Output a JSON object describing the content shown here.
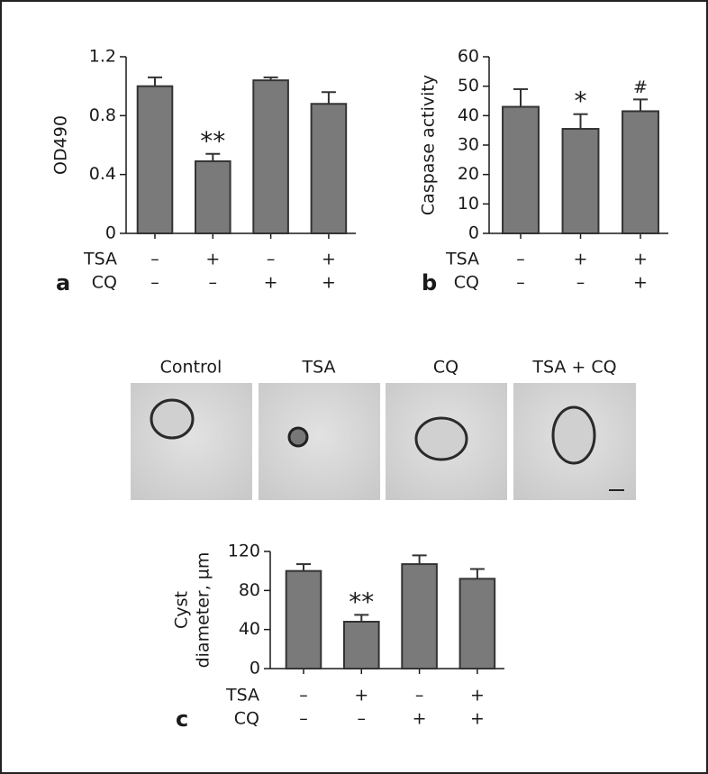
{
  "chart_data": [
    {
      "type": "bar",
      "panel": "a",
      "ylabel": "OD490",
      "color": "#7a7a7a",
      "categories": [
        null,
        null,
        null,
        null
      ],
      "values": [
        1.0,
        0.49,
        1.04,
        0.88
      ],
      "errors": [
        0.06,
        0.05,
        0.02,
        0.08
      ],
      "significance": [
        null,
        "**",
        null,
        null
      ],
      "ylim": [
        0,
        1.2
      ],
      "yticks": [
        0,
        0.4,
        0.8,
        1.2
      ],
      "treatments": [
        {
          "name": "TSA",
          "signs": [
            "–",
            "+",
            "–",
            "+"
          ]
        },
        {
          "name": "CQ",
          "signs": [
            "–",
            "–",
            "+",
            "+"
          ]
        }
      ]
    },
    {
      "type": "bar",
      "panel": "b",
      "ylabel": "Caspase activity",
      "color": "#7a7a7a",
      "categories": [
        null,
        null,
        null
      ],
      "values": [
        43,
        35.5,
        41.5
      ],
      "errors": [
        6,
        5,
        4
      ],
      "significance": [
        null,
        "*",
        "#"
      ],
      "ylim": [
        0,
        60
      ],
      "yticks": [
        0,
        10,
        20,
        30,
        40,
        50,
        60
      ],
      "treatments": [
        {
          "name": "TSA",
          "signs": [
            "–",
            "+",
            "+"
          ]
        },
        {
          "name": "CQ",
          "signs": [
            "–",
            "–",
            "+"
          ]
        }
      ]
    },
    {
      "type": "bar",
      "panel": "c",
      "ylabel": [
        "Cyst",
        "diameter, µm"
      ],
      "color": "#7a7a7a",
      "categories": [
        null,
        null,
        null,
        null
      ],
      "values": [
        100,
        48,
        107,
        92
      ],
      "errors": [
        7,
        7,
        9,
        10
      ],
      "significance": [
        null,
        "**",
        null,
        null
      ],
      "ylim": [
        0,
        120
      ],
      "yticks": [
        0,
        40,
        80,
        120
      ],
      "treatments": [
        {
          "name": "TSA",
          "signs": [
            "–",
            "+",
            "–",
            "+"
          ]
        },
        {
          "name": "CQ",
          "signs": [
            "–",
            "–",
            "+",
            "+"
          ]
        }
      ]
    }
  ],
  "images": {
    "labels": [
      "Control",
      "TSA",
      "CQ",
      "TSA + CQ"
    ]
  }
}
